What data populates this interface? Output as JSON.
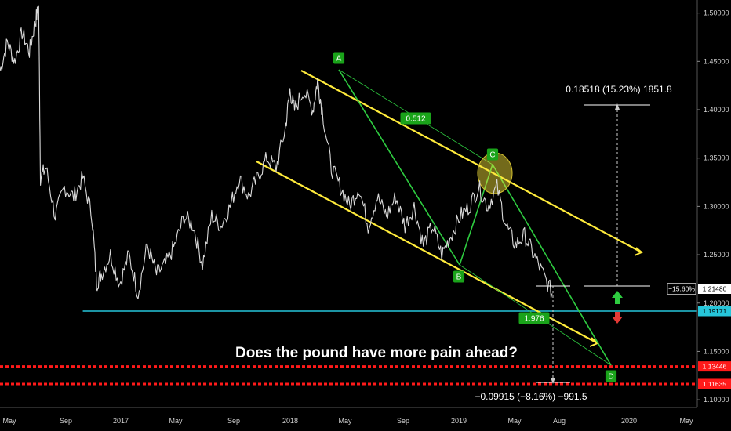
{
  "chart_data": {
    "type": "line",
    "title": "Does the pound have more pain ahead?",
    "x_ticks": [
      "May",
      "Sep",
      "2017",
      "May",
      "Sep",
      "2018",
      "May",
      "Sep",
      "2019",
      "May",
      "Aug",
      "2020",
      "May"
    ],
    "y_ticks": [
      "1.10000",
      "1.15000",
      "1.20000",
      "1.25000",
      "1.30000",
      "1.35000",
      "1.40000",
      "1.45000",
      "1.50000"
    ],
    "ylim": [
      1.092,
      1.507
    ],
    "x_range_months": [
      0,
      49
    ],
    "series": [
      {
        "points": [
          [
            0,
            1.44
          ],
          [
            0.8,
            1.47
          ],
          [
            1.6,
            1.45
          ],
          [
            2.4,
            1.48
          ],
          [
            3.2,
            1.46
          ],
          [
            3.8,
            1.49
          ],
          [
            4.2,
            1.505
          ],
          [
            4.4,
            1.33
          ],
          [
            5,
            1.34
          ],
          [
            6,
            1.29
          ],
          [
            7,
            1.32
          ],
          [
            8,
            1.31
          ],
          [
            9,
            1.33
          ],
          [
            10,
            1.29
          ],
          [
            10.5,
            1.22
          ],
          [
            11,
            1.23
          ],
          [
            12,
            1.25
          ],
          [
            13,
            1.22
          ],
          [
            14,
            1.25
          ],
          [
            15,
            1.21
          ],
          [
            16,
            1.26
          ],
          [
            17,
            1.23
          ],
          [
            18,
            1.24
          ],
          [
            19,
            1.26
          ],
          [
            20,
            1.29
          ],
          [
            21,
            1.28
          ],
          [
            22,
            1.24
          ],
          [
            23,
            1.29
          ],
          [
            24,
            1.28
          ],
          [
            25,
            1.3
          ],
          [
            26,
            1.33
          ],
          [
            27,
            1.31
          ],
          [
            28,
            1.33
          ],
          [
            29,
            1.35
          ],
          [
            30,
            1.34
          ],
          [
            31,
            1.38
          ],
          [
            31.5,
            1.42
          ],
          [
            32,
            1.4
          ],
          [
            33,
            1.42
          ],
          [
            34,
            1.4
          ],
          [
            34.5,
            1.43
          ],
          [
            35,
            1.4
          ],
          [
            36,
            1.34
          ],
          [
            37,
            1.32
          ],
          [
            38,
            1.3
          ],
          [
            39,
            1.32
          ],
          [
            40,
            1.28
          ],
          [
            41,
            1.31
          ],
          [
            42,
            1.29
          ],
          [
            43,
            1.31
          ],
          [
            44,
            1.28
          ],
          [
            45,
            1.3
          ],
          [
            46,
            1.26
          ],
          [
            47,
            1.28
          ],
          [
            48,
            1.25
          ],
          [
            49,
            1.27
          ],
          [
            50,
            1.29
          ],
          [
            51,
            1.3
          ],
          [
            52,
            1.32
          ],
          [
            53,
            1.3
          ],
          [
            54,
            1.32
          ],
          [
            55,
            1.28
          ],
          [
            56,
            1.26
          ],
          [
            57,
            1.27
          ],
          [
            58,
            1.25
          ],
          [
            59,
            1.23
          ],
          [
            60,
            1.21
          ]
        ],
        "color": "#d9d9d9"
      }
    ],
    "horizontal_lines": [
      {
        "y": 1.19171,
        "color": "#26c6da",
        "style": "solid"
      },
      {
        "y": 1.13446,
        "color": "#ff1a1a",
        "style": "dashed"
      },
      {
        "y": 1.11635,
        "color": "#ff1a1a",
        "style": "dashed"
      }
    ],
    "price_tags": [
      {
        "label": "1.21480",
        "y": 1.2148,
        "bg": "#ffffff",
        "fg": "#000000"
      },
      {
        "label": "1.19171",
        "y": 1.19171,
        "bg": "#26c6da",
        "fg": "#000000"
      },
      {
        "label": "1.13446",
        "y": 1.13446,
        "bg": "#ff1a1a",
        "fg": "#ffffff"
      },
      {
        "label": "1.11635",
        "y": 1.11635,
        "bg": "#ff1a1a",
        "fg": "#ffffff"
      }
    ],
    "percent_tag": "−15.60%",
    "pattern_points": [
      {
        "label": "A",
        "x": 36.0,
        "y": 1.437
      },
      {
        "label": "B",
        "x": 48.5,
        "y": 1.239
      },
      {
        "label": "C",
        "x": 52.0,
        "y": 1.335
      },
      {
        "label": "D",
        "x": 64.5,
        "y": 1.135
      }
    ],
    "ratios": [
      {
        "label": "0.512",
        "x": 44.0,
        "y": 1.39
      },
      {
        "label": "1.976",
        "x": 56.3,
        "y": 1.18
      }
    ],
    "measurements": [
      {
        "label": "0.18518 (15.23%) 1851.8",
        "x": 65.2,
        "y": 1.423
      },
      {
        "label": "−0.09915 (−8.16%) −991.5",
        "x": 58.5,
        "y": 1.096
      }
    ],
    "colors": {
      "background": "#000000",
      "price": "#d9d9d9",
      "channel": "#ffeb3b",
      "pattern": "#2ecc40",
      "support": "#26c6da",
      "target": "#ff1a1a",
      "up_arrow": "#2ecc40",
      "down_arrow": "#e53935"
    }
  }
}
